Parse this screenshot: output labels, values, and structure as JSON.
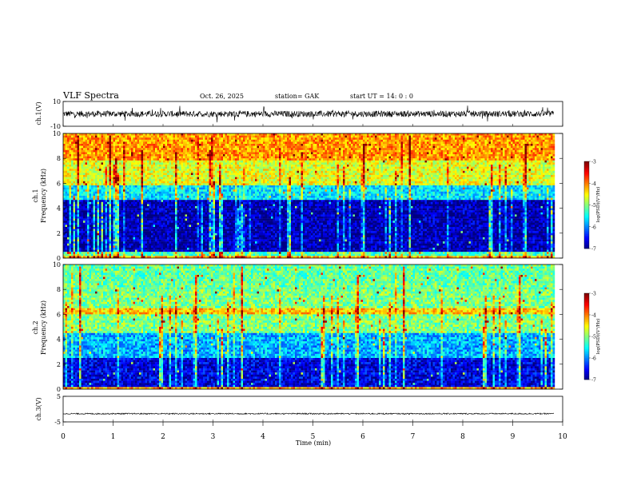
{
  "header": {
    "title": "VLF  Spectra",
    "date": "Oct. 26, 2025",
    "station": "station= GAK",
    "start_ut": "start  UT  =   14: 0   : 0"
  },
  "chart_data": [
    {
      "type": "line",
      "name": "ch1-waveform",
      "ylabel": "ch.1(V)",
      "ylim": [
        -10,
        10
      ],
      "yticks": [
        "10",
        "-10"
      ],
      "xlim": [
        0,
        10
      ],
      "data_end_min": 9.83,
      "trace": {
        "baseline": 0,
        "typical_amplitude": 2.5,
        "burst_amplitude": 7,
        "color": "#000000"
      }
    },
    {
      "type": "heatmap",
      "name": "ch1-spectrogram",
      "ylabel_line1": "ch.1",
      "ylabel_line2": "Frequency  (kHz)",
      "ylim": [
        0,
        10
      ],
      "yticks": [
        "0",
        "2",
        "4",
        "6",
        "8",
        "10"
      ],
      "xlim": [
        0,
        10
      ],
      "data_end_min": 9.83,
      "colorbar": {
        "label": "log(PSD)(V²/Hz)",
        "range": [
          -7,
          -3
        ],
        "ticks": [
          "-3",
          "-4",
          "-5",
          "-6",
          "-7"
        ]
      },
      "bands": [
        {
          "f_from": 0,
          "f_to": 0.3,
          "level": -4.2
        },
        {
          "f_from": 0.3,
          "f_to": 0.6,
          "level": -5.2
        },
        {
          "f_from": 0.6,
          "f_to": 1.0,
          "level": -6.8
        },
        {
          "f_from": 1.0,
          "f_to": 4.8,
          "level": -6.8
        },
        {
          "f_from": 4.8,
          "f_to": 6.0,
          "level": -5.6
        },
        {
          "f_from": 6.0,
          "f_to": 8.0,
          "level": -4.6
        },
        {
          "f_from": 8.0,
          "f_to": 10.0,
          "level": -4.1
        }
      ]
    },
    {
      "type": "heatmap",
      "name": "ch2-spectrogram",
      "ylabel_line1": "ch.2",
      "ylabel_line2": "Frequency  (kHz)",
      "ylim": [
        0,
        10
      ],
      "yticks": [
        "0",
        "2",
        "4",
        "6",
        "8",
        "10"
      ],
      "xlim": [
        0,
        10
      ],
      "data_end_min": 9.83,
      "colorbar": {
        "label": "log(PSD)(V²/Hz)",
        "range": [
          -7,
          -3
        ],
        "ticks": [
          "-3",
          "-4",
          "-5",
          "-6",
          "-7"
        ]
      },
      "bands": [
        {
          "f_from": 0,
          "f_to": 0.3,
          "level": -4.2
        },
        {
          "f_from": 0.3,
          "f_to": 2.5,
          "level": -6.6
        },
        {
          "f_from": 2.5,
          "f_to": 4.5,
          "level": -5.8
        },
        {
          "f_from": 4.5,
          "f_to": 6.0,
          "level": -5.0
        },
        {
          "f_from": 6.0,
          "f_to": 6.5,
          "level": -4.3
        },
        {
          "f_from": 6.5,
          "f_to": 8.0,
          "level": -5.0
        },
        {
          "f_from": 8.0,
          "f_to": 10.0,
          "level": -5.1
        }
      ]
    },
    {
      "type": "line",
      "name": "ch3-waveform",
      "ylabel": "ch.3(V)",
      "ylim": [
        -5,
        5
      ],
      "yticks": [
        "5",
        "-5"
      ],
      "xlim": [
        0,
        10
      ],
      "data_end_min": 9.83,
      "trace": {
        "baseline": -1.8,
        "typical_amplitude": 0.25,
        "color": "#000000"
      }
    }
  ],
  "x_axis": {
    "label": "Time  (min)",
    "ticks": [
      "0",
      "1",
      "2",
      "3",
      "4",
      "5",
      "6",
      "7",
      "8",
      "9",
      "10"
    ]
  }
}
